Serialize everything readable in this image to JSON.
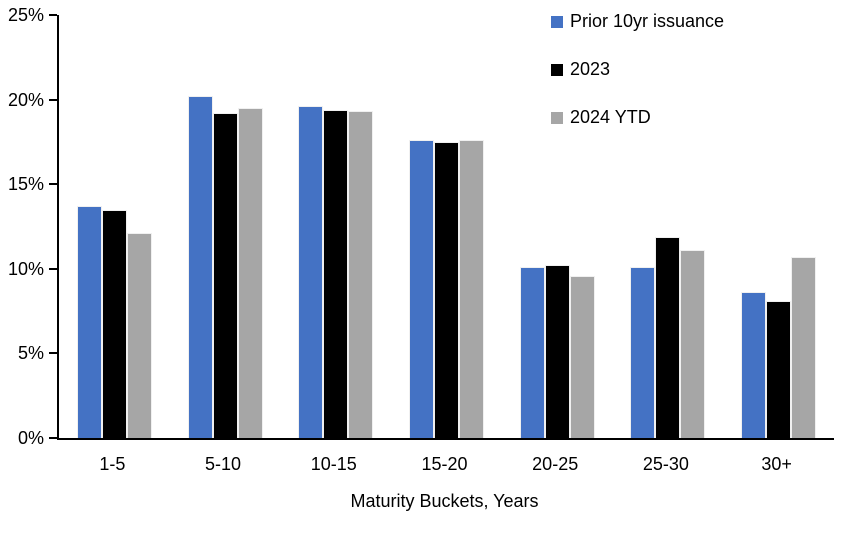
{
  "chart_data": {
    "type": "bar",
    "title": "",
    "categories": [
      "1-5",
      "5-10",
      "10-15",
      "15-20",
      "20-25",
      "25-30",
      "30+"
    ],
    "series": [
      {
        "name": "Prior 10yr issuance",
        "color": "#4472C4",
        "values": [
          13.7,
          20.2,
          19.6,
          17.6,
          10.1,
          10.1,
          8.6
        ]
      },
      {
        "name": "2023",
        "color": "#000000",
        "values": [
          13.5,
          19.2,
          19.4,
          17.5,
          10.2,
          11.9,
          8.1
        ]
      },
      {
        "name": "2024 YTD",
        "color": "#A6A6A6",
        "values": [
          12.1,
          19.5,
          19.3,
          17.6,
          9.6,
          11.1,
          10.7
        ]
      }
    ],
    "xlabel": "Maturity Buckets, Years",
    "ylabel": "",
    "ylim": [
      0,
      25
    ],
    "ytick_step": 5,
    "ytick_labels": [
      "0%",
      "5%",
      "10%",
      "15%",
      "20%",
      "25%"
    ],
    "grid": false,
    "legend_position": "top-right-inside",
    "axis_color": "#000000",
    "background_color": "#ffffff"
  }
}
